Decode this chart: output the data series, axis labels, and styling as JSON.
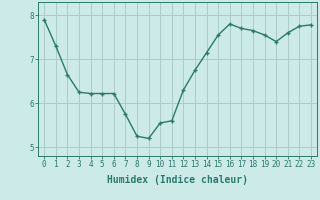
{
  "x": [
    0,
    1,
    2,
    3,
    4,
    5,
    6,
    7,
    8,
    9,
    10,
    11,
    12,
    13,
    14,
    15,
    16,
    17,
    18,
    19,
    20,
    21,
    22,
    23
  ],
  "y": [
    7.9,
    7.3,
    6.65,
    6.25,
    6.22,
    6.22,
    6.22,
    5.75,
    5.25,
    5.2,
    5.55,
    5.6,
    6.3,
    6.75,
    7.15,
    7.55,
    7.8,
    7.7,
    7.65,
    7.55,
    7.4,
    7.6,
    7.75,
    7.78
  ],
  "line_color": "#2a7a6e",
  "marker": "+",
  "marker_size": 3,
  "bg_color": "#cceae8",
  "grid_color": "#aaccca",
  "xlabel": "Humidex (Indice chaleur)",
  "ylim": [
    4.8,
    8.3
  ],
  "xlim": [
    -0.5,
    23.5
  ],
  "yticks": [
    5,
    6,
    7,
    8
  ],
  "xticks": [
    0,
    1,
    2,
    3,
    4,
    5,
    6,
    7,
    8,
    9,
    10,
    11,
    12,
    13,
    14,
    15,
    16,
    17,
    18,
    19,
    20,
    21,
    22,
    23
  ],
  "tick_fontsize": 5.5,
  "xlabel_fontsize": 7,
  "line_width": 1.0
}
